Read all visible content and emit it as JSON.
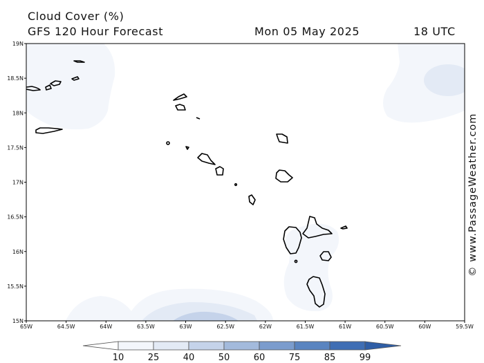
{
  "title": "Cloud Cover (%)",
  "subtitle": "GFS 120 Hour Forecast",
  "date": "Mon 05 May 2025",
  "time": "18 UTC",
  "credit": "© www.PassageWeather.com",
  "map": {
    "lat_labels": [
      "19N",
      "18.5N",
      "18N",
      "17.5N",
      "17N",
      "16.5N",
      "16N",
      "15.5N",
      "15N"
    ],
    "lon_labels": [
      "65W",
      "64.5W",
      "64W",
      "63.5W",
      "63W",
      "62.5W",
      "62W",
      "61.5W",
      "61W",
      "60.5W",
      "60W",
      "59.5W"
    ],
    "lat_range": [
      15,
      19
    ],
    "lon_range": [
      -65,
      -59.5
    ]
  },
  "colorbar": {
    "labels": [
      "10",
      "25",
      "40",
      "50",
      "60",
      "75",
      "85",
      "99"
    ],
    "colors": [
      "#ffffff",
      "#f3f6fb",
      "#e3eaf5",
      "#c5d3ea",
      "#a3badc",
      "#7b9ccd",
      "#5a84c0",
      "#3f6eb4",
      "#2f5ea6"
    ]
  },
  "chart_data": {
    "type": "heatmap",
    "title": "Cloud Cover (%)",
    "subtitle": "GFS 120 Hour Forecast",
    "ylim": [
      15,
      19
    ],
    "xlim": [
      -65,
      -59.5
    ],
    "levels": [
      10,
      25,
      40,
      50,
      60,
      75,
      85,
      99
    ]
  }
}
